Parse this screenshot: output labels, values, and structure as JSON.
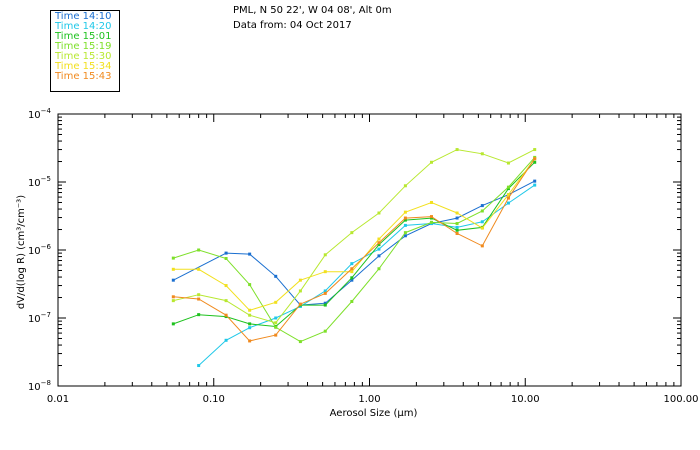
{
  "header": {
    "line1": "PML, N 50 22', W 04 08', Alt 0m",
    "line2": "Data from: 04 Oct 2017"
  },
  "chart_data": {
    "type": "line",
    "title": "PML, N 50 22', W 04 08', Alt 0m",
    "subtitle": "Data from: 04 Oct 2017",
    "xlabel": "Aerosol Size (μm)",
    "ylabel": "dV/d(log R) (cm³/cm⁻³)",
    "xscale": "log",
    "yscale": "log",
    "xlim": [
      0.01,
      100
    ],
    "ylim": [
      1e-08,
      0.0001
    ],
    "x_ticks": [
      {
        "value": 0.01,
        "label": "0.01"
      },
      {
        "value": 0.1,
        "label": "0.10"
      },
      {
        "value": 1,
        "label": "1.00"
      },
      {
        "value": 10,
        "label": "10.00"
      },
      {
        "value": 100,
        "label": "100.00"
      }
    ],
    "y_ticks": [
      {
        "value": 1e-08,
        "base": "10",
        "exp": "-8"
      },
      {
        "value": 1e-07,
        "base": "10",
        "exp": "-7"
      },
      {
        "value": 1e-06,
        "base": "10",
        "exp": "-6"
      },
      {
        "value": 1e-05,
        "base": "10",
        "exp": "-5"
      },
      {
        "value": 0.0001,
        "base": "10",
        "exp": "-4"
      }
    ],
    "legend_position": "top-left",
    "series": [
      {
        "name": "Time 14:10",
        "color": "#1a6fd0",
        "x": [
          0.055,
          0.12,
          0.17,
          0.25,
          0.36,
          0.52,
          0.77,
          1.15,
          1.7,
          2.5,
          3.65,
          5.3,
          7.8,
          11.5
        ],
        "y": [
          3.6e-07,
          9e-07,
          8.7e-07,
          4.1e-07,
          1.55e-07,
          1.65e-07,
          3.6e-07,
          8.2e-07,
          1.62e-06,
          2.45e-06,
          2.95e-06,
          4.5e-06,
          6.5e-06,
          1.03e-05
        ]
      },
      {
        "name": "Time 14:20",
        "color": "#1fc8e8",
        "x": [
          0.08,
          0.12,
          0.17,
          0.25,
          0.36,
          0.52,
          0.77,
          1.15,
          1.7,
          2.5,
          3.65,
          5.3,
          7.8,
          11.5
        ],
        "y": [
          2e-08,
          4.7e-08,
          7.2e-08,
          1e-07,
          1.48e-07,
          2.5e-07,
          6.3e-07,
          1.03e-06,
          2.3e-06,
          2.45e-06,
          2.15e-06,
          2.6e-06,
          4.9e-06,
          9e-06
        ]
      },
      {
        "name": "Time 15:01",
        "color": "#1ec21e",
        "x": [
          0.055,
          0.08,
          0.12,
          0.17,
          0.25,
          0.36,
          0.52,
          0.77,
          1.15,
          1.7,
          2.5,
          3.65,
          5.3,
          7.8,
          11.5
        ],
        "y": [
          8.2e-08,
          1.12e-07,
          1.05e-07,
          8.2e-08,
          7.5e-08,
          1.55e-07,
          1.55e-07,
          3.9e-07,
          1.2e-06,
          2.75e-06,
          2.95e-06,
          1.95e-06,
          2.15e-06,
          8e-06,
          1.95e-05
        ]
      },
      {
        "name": "Time 15:19",
        "color": "#7ee02a",
        "x": [
          0.055,
          0.08,
          0.12,
          0.17,
          0.25,
          0.36,
          0.52,
          0.77,
          1.15,
          1.7,
          2.5,
          3.65,
          5.3,
          7.8,
          11.5
        ],
        "y": [
          7.6e-07,
          1e-06,
          7.5e-07,
          3.1e-07,
          7.3e-08,
          4.5e-08,
          6.4e-08,
          1.75e-07,
          5.3e-07,
          1.8e-06,
          2.55e-06,
          2.45e-06,
          3.75e-06,
          8.4e-06,
          2.3e-05
        ]
      },
      {
        "name": "Time 15:30",
        "color": "#b8e830",
        "x": [
          0.055,
          0.08,
          0.12,
          0.17,
          0.25,
          0.36,
          0.52,
          0.77,
          1.15,
          1.7,
          2.5,
          3.65,
          5.3,
          7.8,
          11.5
        ],
        "y": [
          1.8e-07,
          2.2e-07,
          1.8e-07,
          1.1e-07,
          8.5e-08,
          2.5e-07,
          8.5e-07,
          1.8e-06,
          3.5e-06,
          8.8e-06,
          1.95e-05,
          3e-05,
          2.6e-05,
          1.9e-05,
          3e-05
        ]
      },
      {
        "name": "Time 15:34",
        "color": "#f2e01e",
        "x": [
          0.055,
          0.08,
          0.12,
          0.17,
          0.25,
          0.36,
          0.52,
          0.77,
          1.15,
          1.7,
          2.5,
          3.65,
          5.3,
          7.8,
          11.5
        ],
        "y": [
          5.2e-07,
          5.2e-07,
          3e-07,
          1.3e-07,
          1.7e-07,
          3.6e-07,
          4.8e-07,
          4.8e-07,
          1.45e-06,
          3.6e-06,
          5e-06,
          3.5e-06,
          2.1e-06,
          6.5e-06,
          2.2e-05
        ]
      },
      {
        "name": "Time 15:43",
        "color": "#f08a1e",
        "x": [
          0.055,
          0.08,
          0.12,
          0.17,
          0.25,
          0.36,
          0.52,
          0.77,
          1.15,
          1.7,
          2.5,
          3.65,
          5.3,
          7.8,
          11.5
        ],
        "y": [
          2.05e-07,
          1.9e-07,
          1.1e-07,
          4.6e-08,
          5.6e-08,
          1.6e-07,
          2.3e-07,
          5.3e-07,
          1.28e-06,
          2.95e-06,
          3.1e-06,
          1.75e-06,
          1.15e-06,
          5.8e-06,
          2.2e-05
        ]
      }
    ]
  }
}
